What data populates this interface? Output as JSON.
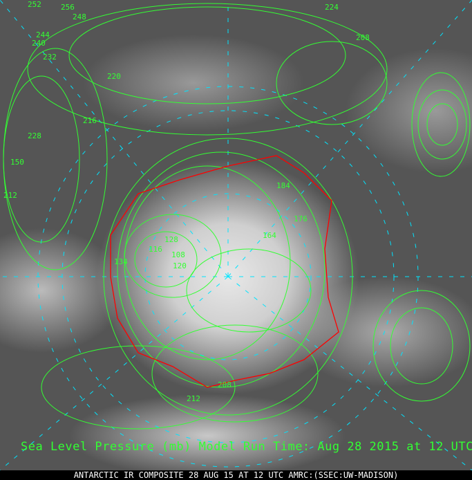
{
  "title_overlay": "Sea Level Pressure (mb) Model Run Time: Aug 28 2015 at 12 UTC",
  "footer": "ANTARCTIC IR COMPOSITE 28 AUG 15 AT 12 UTC AMRC:(SSEC:UW-MADISON)",
  "colors": {
    "contour": "#33ff33",
    "coastline": "#ff0000",
    "grid": "#00e5ff"
  },
  "contour_labels": [
    "252",
    "256",
    "248",
    "244",
    "240",
    "232",
    "228",
    "220",
    "216",
    "212",
    "208",
    "224",
    "150",
    "164",
    "176",
    "120",
    "116",
    "108",
    "128",
    "134",
    "184",
    "208",
    "212"
  ]
}
